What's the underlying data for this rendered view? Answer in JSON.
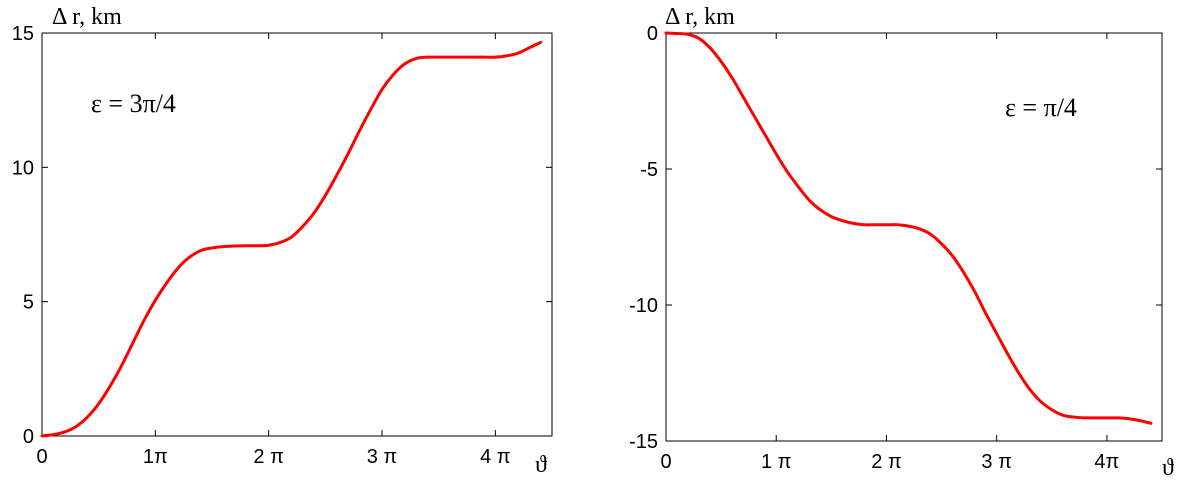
{
  "chart_data": [
    {
      "type": "line",
      "ylabel": "Δ r, km",
      "xlabel": "ϑ",
      "xlim": [
        0,
        4.5
      ],
      "ylim": [
        0,
        15
      ],
      "x_ticks": [
        {
          "value": 0,
          "label": "0"
        },
        {
          "value": 1,
          "label": "1π"
        },
        {
          "value": 2,
          "label": "2 π"
        },
        {
          "value": 3,
          "label": "3 π"
        },
        {
          "value": 4,
          "label": "4 π"
        }
      ],
      "y_ticks": [
        {
          "value": 0,
          "label": "0"
        },
        {
          "value": 5,
          "label": "5"
        },
        {
          "value": 10,
          "label": "10"
        },
        {
          "value": 15,
          "label": "15"
        }
      ],
      "annotation": "ε = 3π/4",
      "series": [
        {
          "color": "#ff0000",
          "x": [
            0,
            0.1,
            0.2,
            0.3,
            0.4,
            0.5,
            0.6,
            0.7,
            0.8,
            0.9,
            1.0,
            1.1,
            1.2,
            1.3,
            1.4,
            1.5,
            1.6,
            1.7,
            1.8,
            1.9,
            2.0,
            2.1,
            2.2,
            2.3,
            2.4,
            2.5,
            2.6,
            2.7,
            2.8,
            2.9,
            3.0,
            3.1,
            3.2,
            3.3,
            3.4,
            3.5,
            3.6,
            3.7,
            3.8,
            3.9,
            4.0,
            4.1,
            4.2,
            4.3,
            4.4
          ],
          "y": [
            0.0,
            0.05,
            0.15,
            0.35,
            0.7,
            1.2,
            1.85,
            2.6,
            3.45,
            4.3,
            5.05,
            5.7,
            6.25,
            6.65,
            6.9,
            7.0,
            7.05,
            7.07,
            7.08,
            7.08,
            7.1,
            7.2,
            7.4,
            7.8,
            8.3,
            8.95,
            9.7,
            10.5,
            11.35,
            12.15,
            12.9,
            13.45,
            13.85,
            14.05,
            14.1,
            14.1,
            14.1,
            14.1,
            14.1,
            14.1,
            14.1,
            14.15,
            14.25,
            14.45,
            14.65
          ]
        }
      ]
    },
    {
      "type": "line",
      "ylabel": "Δ r, km",
      "xlabel": "ϑ",
      "xlim": [
        0,
        4.5
      ],
      "ylim": [
        -15,
        0
      ],
      "x_ticks": [
        {
          "value": 0,
          "label": "0"
        },
        {
          "value": 1,
          "label": "1 π"
        },
        {
          "value": 2,
          "label": "2 π"
        },
        {
          "value": 3,
          "label": "3 π"
        },
        {
          "value": 4,
          "label": "4π"
        }
      ],
      "y_ticks": [
        {
          "value": 0,
          "label": "0"
        },
        {
          "value": -5,
          "label": "-5"
        },
        {
          "value": -10,
          "label": "-10"
        },
        {
          "value": -15,
          "label": "-15"
        }
      ],
      "annotation": "ε = π/4",
      "series": [
        {
          "color": "#ff0000",
          "x": [
            0,
            0.1,
            0.2,
            0.3,
            0.4,
            0.5,
            0.6,
            0.7,
            0.8,
            0.9,
            1.0,
            1.1,
            1.2,
            1.3,
            1.4,
            1.5,
            1.6,
            1.7,
            1.8,
            1.9,
            2.0,
            2.1,
            2.2,
            2.3,
            2.4,
            2.5,
            2.6,
            2.7,
            2.8,
            2.9,
            3.0,
            3.1,
            3.2,
            3.3,
            3.4,
            3.5,
            3.6,
            3.7,
            3.8,
            3.9,
            4.0,
            4.1,
            4.2,
            4.3,
            4.4
          ],
          "y": [
            0.0,
            -0.02,
            -0.05,
            -0.2,
            -0.55,
            -1.05,
            -1.65,
            -2.35,
            -3.05,
            -3.75,
            -4.45,
            -5.1,
            -5.65,
            -6.15,
            -6.5,
            -6.75,
            -6.9,
            -7.0,
            -7.05,
            -7.05,
            -7.05,
            -7.05,
            -7.1,
            -7.2,
            -7.4,
            -7.75,
            -8.2,
            -8.8,
            -9.5,
            -10.3,
            -11.05,
            -11.8,
            -12.5,
            -13.1,
            -13.55,
            -13.85,
            -14.05,
            -14.12,
            -14.15,
            -14.15,
            -14.15,
            -14.15,
            -14.18,
            -14.25,
            -14.35
          ]
        }
      ]
    }
  ]
}
